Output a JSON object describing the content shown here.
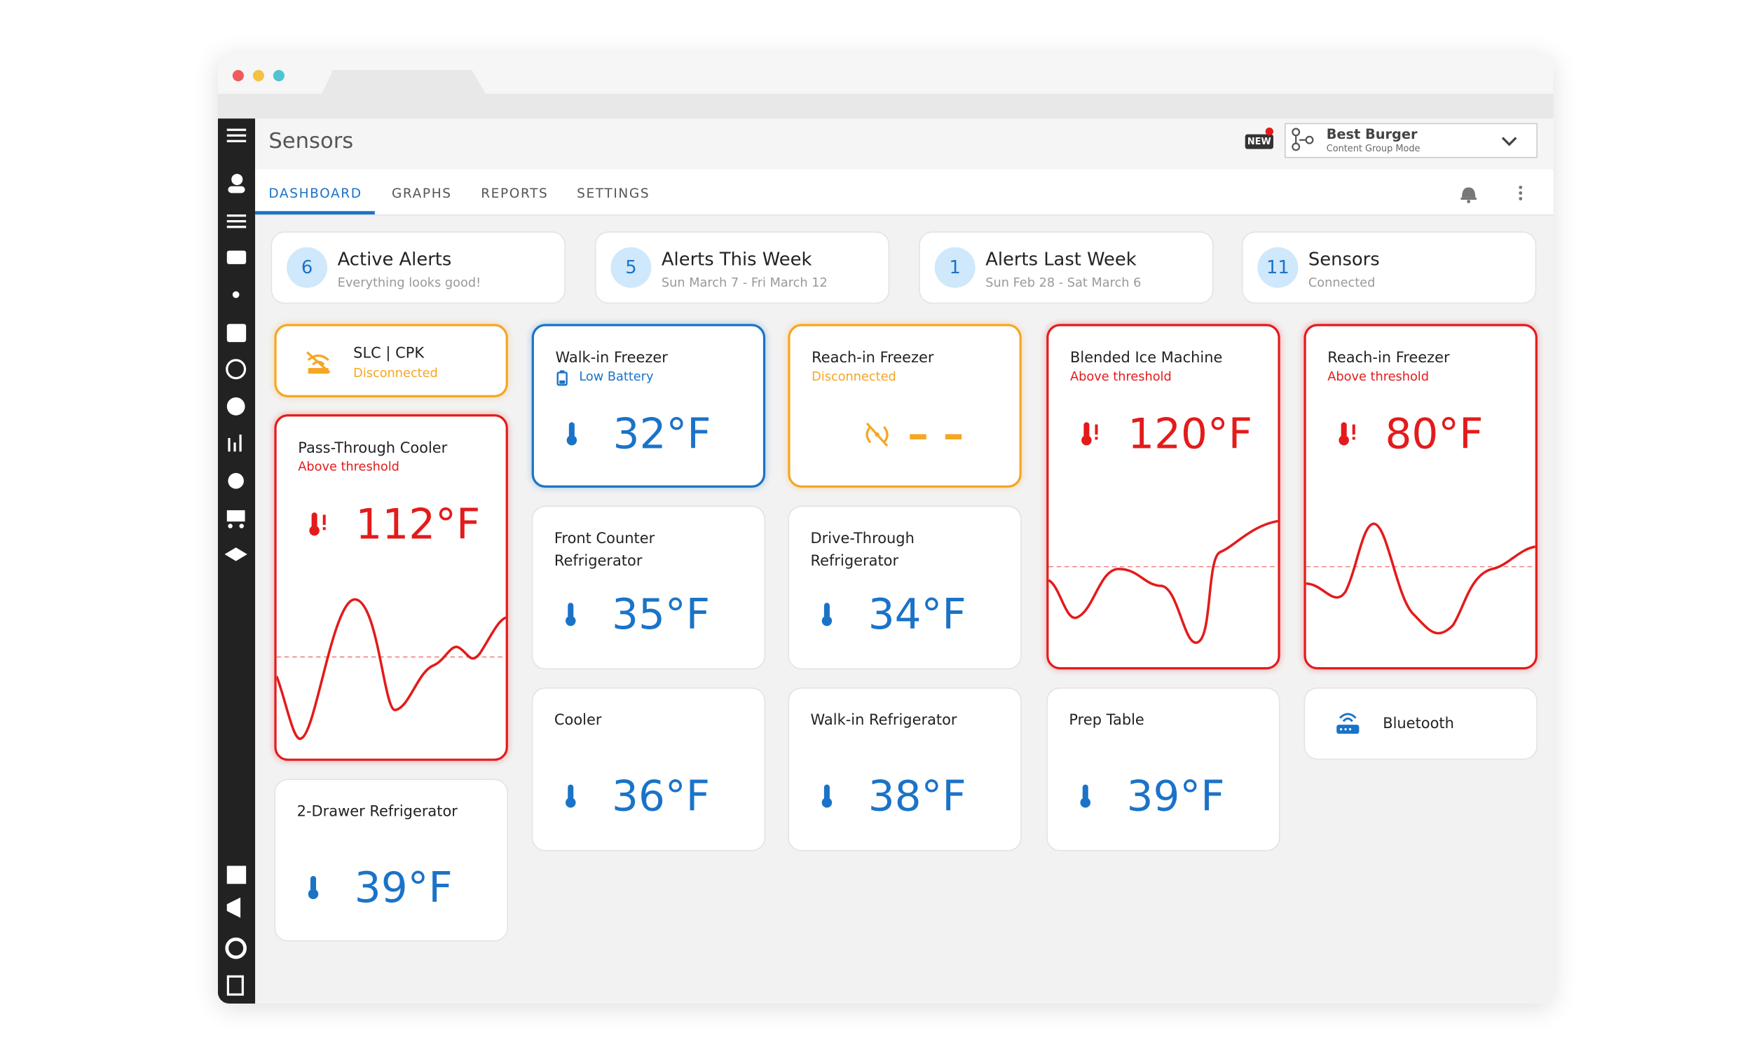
{
  "header": {
    "title": "Sensors",
    "badge": "NEW",
    "account_name": "Best Burger",
    "account_mode": "Content Group Mode"
  },
  "tabs": [
    "DASHBOARD",
    "GRAPHS",
    "REPORTS",
    "SETTINGS"
  ],
  "summary": [
    {
      "count": "6",
      "title": "Active Alerts",
      "subtitle": "Everything looks good!"
    },
    {
      "count": "5",
      "title": "Alerts This Week",
      "subtitle": "Sun March 7 - Fri March 12"
    },
    {
      "count": "1",
      "title": "Alerts Last Week",
      "subtitle": "Sun Feb 28 - Sat March 6"
    },
    {
      "count": "11",
      "title": "Sensors",
      "subtitle": "Connected"
    }
  ],
  "cards": [
    {
      "name": "SLC | CPK",
      "status": "Disconnected",
      "color": "#f5a623"
    },
    {
      "name": "Pass-Through Cooler",
      "status": "Above threshold",
      "temp": "112°F",
      "color": "#e31b1b"
    },
    {
      "name": "2-Drawer Refrigerator",
      "temp": "39°F",
      "color": "#1a73c8"
    },
    {
      "name": "Walk-in Freezer",
      "status": "Low Battery",
      "temp": "32°F",
      "color": "#1a73c8"
    },
    {
      "name": "Front Counter Refrigerator",
      "temp": "35°F",
      "color": "#1a73c8"
    },
    {
      "name": "Cooler",
      "temp": "36°F",
      "color": "#1a73c8"
    },
    {
      "name": "Reach-in Freezer",
      "status": "Disconnected",
      "temp": "– –",
      "color": "#f5a623"
    },
    {
      "name": "Drive-Through Refrigerator",
      "temp": "34°F",
      "color": "#1a73c8"
    },
    {
      "name": "Walk-in Refrigerator",
      "temp": "38°F",
      "color": "#1a73c8"
    },
    {
      "name": "Blended Ice Machine",
      "status": "Above threshold",
      "temp": "120°F",
      "color": "#e31b1b"
    },
    {
      "name": "Prep Table",
      "temp": "39°F",
      "color": "#1a73c8"
    },
    {
      "name": "Reach-in Freezer",
      "status": "Above threshold",
      "temp": "80°F",
      "color": "#e31b1b"
    },
    {
      "name": "Bluetooth",
      "color": "#1a73c8"
    }
  ]
}
